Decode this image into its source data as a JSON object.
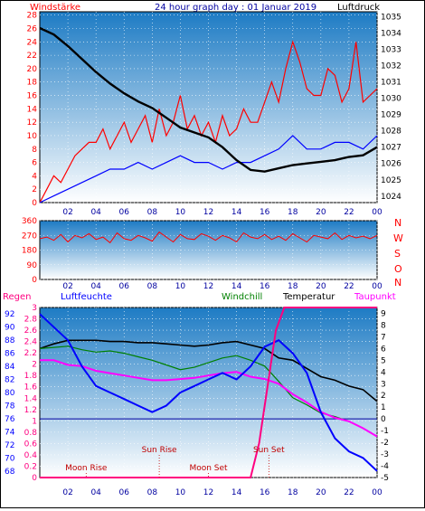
{
  "top": {
    "left_label": "Windstärke",
    "title": "24 hour graph day : 01 Januar 2019",
    "right_label": "Luftdruck"
  },
  "mid": {
    "dir_letters": [
      "N",
      "W",
      "S",
      "O",
      "N"
    ]
  },
  "bottom": {
    "regen": "Regen",
    "luftfeuchte": "Luftfeuchte",
    "windchill": "Windchill",
    "temperatur": "Temperatur",
    "taupunkt": "Taupunkt"
  },
  "colors": {
    "wind": "#ff0000",
    "gust": "#0000ff",
    "pressure": "#000000",
    "humidity": "#0000ff",
    "windchill": "#008000",
    "temperature": "#000000",
    "dewpoint": "#ff00ff",
    "rain": "#ff0080",
    "grad_top": "#1d7bc4",
    "grad_bottom": "#ffffff"
  },
  "chart_data": [
    {
      "type": "line",
      "x_ticks": [
        "02",
        "04",
        "06",
        "08",
        "10",
        "12",
        "14",
        "16",
        "18",
        "20",
        "22",
        "00"
      ],
      "y_left_ticks": [
        "0",
        "2",
        "4",
        "6",
        "8",
        "10",
        "12",
        "14",
        "16",
        "18",
        "20",
        "22",
        "24",
        "26",
        "28"
      ],
      "y_right_ticks": [
        "1024",
        "1025",
        "1026",
        "1027",
        "1028",
        "1029",
        "1030",
        "1031",
        "1032",
        "1033",
        "1034",
        "1035"
      ],
      "ylim_left": [
        0,
        28.5
      ],
      "ylim_right": [
        1023.6,
        1035.3
      ],
      "series": [
        {
          "key": "wind",
          "x": [
            0,
            0.5,
            1,
            1.5,
            2,
            2.5,
            3,
            3.5,
            4,
            4.5,
            5,
            5.5,
            6,
            6.5,
            7,
            7.5,
            8,
            8.5,
            9,
            9.5,
            10,
            10.5,
            11,
            11.5,
            12,
            12.5,
            13,
            13.5,
            14,
            14.5,
            15,
            15.5,
            16,
            16.5,
            17,
            17.5,
            18,
            18.5,
            19,
            19.5,
            20,
            20.5,
            21,
            21.5,
            22,
            22.5,
            23,
            23.5,
            24
          ],
          "values": [
            0,
            2,
            4,
            3,
            5,
            7,
            8,
            9,
            9,
            11,
            8,
            10,
            12,
            9,
            11,
            13,
            9,
            14,
            10,
            12,
            16,
            11,
            13,
            10,
            12,
            9,
            13,
            10,
            11,
            14,
            12,
            12,
            15,
            18,
            15,
            20,
            24,
            21,
            17,
            16,
            16,
            20,
            19,
            15,
            17,
            24,
            15,
            16,
            17
          ]
        },
        {
          "key": "gust",
          "x": [
            0,
            1,
            2,
            3,
            4,
            5,
            6,
            7,
            8,
            9,
            10,
            11,
            12,
            13,
            14,
            15,
            16,
            17,
            18,
            19,
            20,
            21,
            22,
            23,
            24
          ],
          "values": [
            0,
            1,
            2,
            3,
            4,
            5,
            5,
            6,
            5,
            6,
            7,
            6,
            6,
            5,
            6,
            6,
            7,
            8,
            10,
            8,
            8,
            9,
            9,
            8,
            10
          ]
        },
        {
          "key": "pressure",
          "x": [
            0,
            1,
            2,
            3,
            4,
            5,
            6,
            7,
            8,
            9,
            10,
            11,
            12,
            13,
            14,
            15,
            16,
            17,
            18,
            19,
            20,
            21,
            22,
            23,
            24
          ],
          "values": [
            1034.3,
            1033.9,
            1033.2,
            1032.4,
            1031.6,
            1030.9,
            1030.3,
            1029.8,
            1029.4,
            1028.8,
            1028.2,
            1027.9,
            1027.6,
            1027.0,
            1026.2,
            1025.6,
            1025.5,
            1025.7,
            1025.9,
            1026.0,
            1026.1,
            1026.2,
            1026.4,
            1026.5,
            1027.0
          ]
        }
      ]
    },
    {
      "type": "line",
      "x_ticks": [
        "02",
        "04",
        "06",
        "08",
        "10",
        "12",
        "14",
        "16",
        "18",
        "20",
        "22",
        "00"
      ],
      "y_ticks": [
        "0",
        "90",
        "180",
        "270",
        "360"
      ],
      "ylim": [
        0,
        360
      ],
      "series": [
        {
          "key": "direction",
          "x": [
            0,
            0.5,
            1,
            1.5,
            2,
            2.5,
            3,
            3.5,
            4,
            4.5,
            5,
            5.5,
            6,
            6.5,
            7,
            7.5,
            8,
            8.5,
            9,
            9.5,
            10,
            10.5,
            11,
            11.5,
            12,
            12.5,
            13,
            13.5,
            14,
            14.5,
            15,
            15.5,
            16,
            16.5,
            17,
            17.5,
            18,
            18.5,
            19,
            19.5,
            20,
            20.5,
            21,
            21.5,
            22,
            22.5,
            23,
            23.5,
            24
          ],
          "values": [
            250,
            260,
            240,
            275,
            230,
            270,
            255,
            280,
            245,
            260,
            225,
            285,
            250,
            240,
            270,
            255,
            235,
            290,
            260,
            230,
            275,
            250,
            245,
            280,
            265,
            240,
            270,
            255,
            230,
            285,
            260,
            250,
            275,
            245,
            265,
            240,
            280,
            255,
            230,
            270,
            260,
            250,
            285,
            245,
            270,
            255,
            265,
            250,
            270
          ]
        }
      ]
    },
    {
      "type": "line",
      "x_ticks": [
        "02",
        "04",
        "06",
        "08",
        "10",
        "12",
        "14",
        "16",
        "18",
        "20",
        "22",
        "00"
      ],
      "regen_ticks": [
        "0",
        "0.2",
        "0.4",
        "0.6",
        "0.8",
        "1",
        "1.2",
        "1.4",
        "1.6",
        "1.8",
        "2",
        "2.2",
        "2.4",
        "2.6",
        "2.8",
        "3"
      ],
      "humidity_ticks": [
        "68",
        "70",
        "72",
        "74",
        "76",
        "78",
        "80",
        "82",
        "84",
        "86",
        "88",
        "90",
        "92"
      ],
      "temp_ticks": [
        "-5",
        "-4",
        "-3",
        "-2",
        "-1",
        "0",
        "1",
        "2",
        "3",
        "4",
        "5",
        "6",
        "7",
        "8",
        "9"
      ],
      "ylim_regen": [
        0,
        3
      ],
      "ylim_humidity": [
        67,
        93
      ],
      "ylim_temp": [
        -5,
        9.5
      ],
      "annotations": [
        "Moon Rise",
        "Sun Rise",
        "Moon Set",
        "Sun Set"
      ],
      "series": [
        {
          "key": "temperature",
          "x": [
            0,
            1,
            2,
            3,
            4,
            5,
            6,
            7,
            8,
            9,
            10,
            11,
            12,
            13,
            14,
            15,
            16,
            17,
            18,
            19,
            20,
            21,
            22,
            23,
            24
          ],
          "values": [
            6.0,
            6.4,
            6.7,
            6.7,
            6.7,
            6.6,
            6.6,
            6.5,
            6.5,
            6.4,
            6.3,
            6.2,
            6.3,
            6.5,
            6.6,
            6.3,
            6.0,
            5.2,
            5.0,
            4.3,
            3.6,
            3.3,
            2.8,
            2.5,
            1.5
          ]
        },
        {
          "key": "windchill",
          "x": [
            0,
            1,
            2,
            3,
            4,
            5,
            6,
            7,
            8,
            9,
            10,
            11,
            12,
            13,
            14,
            15,
            16,
            17,
            18,
            19,
            20,
            21,
            22,
            23,
            24
          ],
          "values": [
            6.0,
            6.1,
            6.2,
            5.9,
            5.7,
            5.8,
            5.6,
            5.3,
            5.0,
            4.6,
            4.2,
            4.4,
            4.8,
            5.2,
            5.4,
            5.0,
            4.5,
            3.2,
            1.8,
            1.2,
            0.5,
            0.2,
            -0.2,
            -0.8,
            -1.5
          ]
        },
        {
          "key": "dewpoint",
          "x": [
            0,
            1,
            2,
            3,
            4,
            5,
            6,
            7,
            8,
            9,
            10,
            11,
            12,
            13,
            14,
            15,
            16,
            17,
            18,
            19,
            20,
            21,
            22,
            23,
            24
          ],
          "values": [
            5.0,
            5.0,
            4.6,
            4.5,
            4.1,
            3.9,
            3.7,
            3.5,
            3.3,
            3.3,
            3.4,
            3.5,
            3.7,
            3.9,
            4.0,
            3.6,
            3.4,
            3.0,
            2.1,
            1.4,
            0.6,
            0.1,
            -0.2,
            -0.8,
            -1.5
          ]
        },
        {
          "key": "humidity",
          "x": [
            0,
            1,
            2,
            3,
            4,
            5,
            6,
            7,
            8,
            9,
            10,
            11,
            12,
            13,
            14,
            15,
            16,
            17,
            18,
            19,
            20,
            21,
            22,
            23,
            24
          ],
          "values": [
            92,
            90,
            88,
            84,
            81,
            80,
            79,
            78,
            77,
            78,
            80,
            81,
            82,
            83,
            82,
            84,
            87,
            88,
            86,
            83,
            77,
            73,
            71,
            70,
            68
          ]
        },
        {
          "key": "rain",
          "x": [
            0,
            15,
            15.6,
            16.2,
            16.8,
            17.4,
            24
          ],
          "values": [
            0,
            0,
            0.6,
            1.6,
            2.6,
            3,
            3
          ]
        }
      ]
    }
  ]
}
